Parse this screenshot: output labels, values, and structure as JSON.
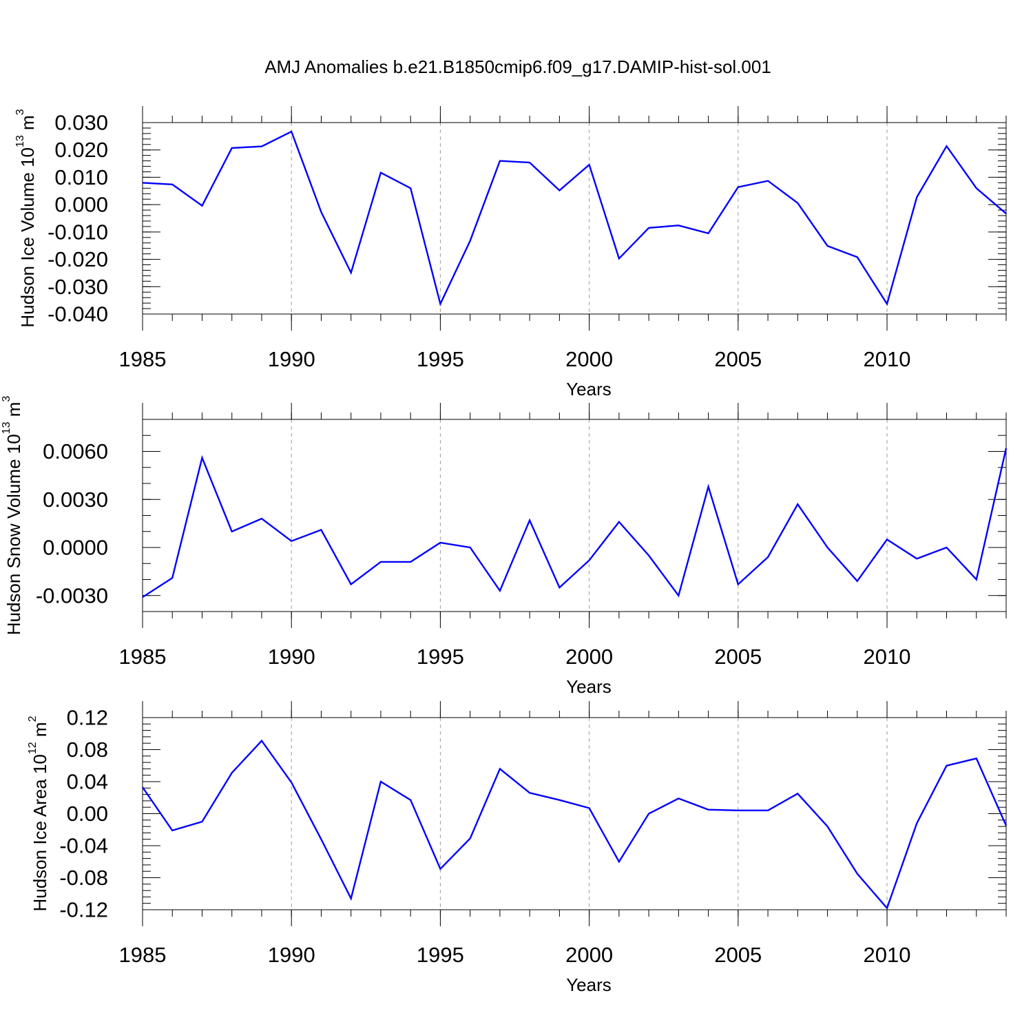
{
  "figure": {
    "title": "AMJ Anomalies b.e21.B1850cmip6.f09_g17.DAMIP-hist-sol.001",
    "series_color": "#0000ff"
  },
  "chart_data": [
    {
      "type": "line",
      "title": "AMJ Anomalies b.e21.B1850cmip6.f09_g17.DAMIP-hist-sol.001",
      "xlabel": "Years",
      "ylabel": "Hudson Ice Volume 10",
      "ylabel_exp": "13",
      "ylabel_unit": "m",
      "ylabel_unit_exp": "3",
      "xlim": [
        1985,
        2014
      ],
      "ylim": [
        -0.04,
        0.03
      ],
      "x_ticks": [
        1985,
        1990,
        1995,
        2000,
        2005,
        2010
      ],
      "x_tick_labels": [
        "1985",
        "1990",
        "1995",
        "2000",
        "2005",
        "2010"
      ],
      "y_ticks": [
        0.03,
        0.02,
        0.01,
        0.0,
        -0.01,
        -0.02,
        -0.03,
        -0.04
      ],
      "y_tick_labels": [
        "0.030",
        "0.020",
        "0.010",
        "0.000",
        "-0.010",
        "-0.020",
        "-0.030",
        "-0.040"
      ],
      "x_minor_step": 1,
      "y_minor_step": 0.002,
      "grid": "vertical-dashed",
      "x": [
        1985,
        1986,
        1987,
        1988,
        1989,
        1990,
        1991,
        1992,
        1993,
        1994,
        1995,
        1996,
        1997,
        1998,
        1999,
        2000,
        2001,
        2002,
        2003,
        2004,
        2005,
        2006,
        2007,
        2008,
        2009,
        2010,
        2011,
        2012,
        2013,
        2014
      ],
      "series": [
        {
          "name": "Hudson Ice Volume",
          "values": [
            0.008,
            0.0074,
            -0.0004,
            0.0207,
            0.0213,
            0.0267,
            -0.0027,
            -0.0249,
            0.0117,
            0.006,
            -0.0363,
            -0.0132,
            0.016,
            0.0154,
            0.0052,
            0.0146,
            -0.0197,
            -0.0085,
            -0.0076,
            -0.0105,
            0.0064,
            0.0087,
            0.0006,
            -0.0151,
            -0.0192,
            -0.0363,
            0.0027,
            0.0214,
            0.006,
            -0.0033
          ]
        }
      ]
    },
    {
      "type": "line",
      "xlabel": "Years",
      "ylabel": "Hudson Snow Volume 10",
      "ylabel_exp": "13",
      "ylabel_unit": "m",
      "ylabel_unit_exp": "3",
      "xlim": [
        1985,
        2014
      ],
      "ylim": [
        -0.004,
        0.008
      ],
      "x_ticks": [
        1985,
        1990,
        1995,
        2000,
        2005,
        2010
      ],
      "x_tick_labels": [
        "1985",
        "1990",
        "1995",
        "2000",
        "2005",
        "2010"
      ],
      "y_ticks": [
        0.006,
        0.003,
        0.0,
        -0.003
      ],
      "y_tick_labels": [
        "0.0060",
        "0.0030",
        "0.0000",
        "-0.0030"
      ],
      "x_minor_step": 1,
      "y_minor_step": 0.001,
      "grid": "vertical-dashed",
      "x": [
        1985,
        1986,
        1987,
        1988,
        1989,
        1990,
        1991,
        1992,
        1993,
        1994,
        1995,
        1996,
        1997,
        1998,
        1999,
        2000,
        2001,
        2002,
        2003,
        2004,
        2005,
        2006,
        2007,
        2008,
        2009,
        2010,
        2011,
        2012,
        2013,
        2014
      ],
      "series": [
        {
          "name": "Hudson Snow Volume",
          "values": [
            -0.0031,
            -0.0019,
            0.0056,
            0.001,
            0.0018,
            0.0004,
            0.0011,
            -0.0023,
            -0.0009,
            -0.0009,
            0.0003,
            0.0,
            -0.0027,
            0.0017,
            -0.0025,
            -0.0008,
            0.0016,
            -0.0005,
            -0.003,
            0.0038,
            -0.0023,
            -0.0006,
            0.0027,
            0.0,
            -0.0021,
            0.0005,
            -0.0007,
            0.0,
            -0.002,
            0.0062
          ]
        }
      ]
    },
    {
      "type": "line",
      "xlabel": "Years",
      "ylabel": "Hudson Ice Area 10",
      "ylabel_exp": "12",
      "ylabel_unit": "m",
      "ylabel_unit_exp": "2",
      "xlim": [
        1985,
        2014
      ],
      "ylim": [
        -0.12,
        0.12
      ],
      "x_ticks": [
        1985,
        1990,
        1995,
        2000,
        2005,
        2010
      ],
      "x_tick_labels": [
        "1985",
        "1990",
        "1995",
        "2000",
        "2005",
        "2010"
      ],
      "y_ticks": [
        0.12,
        0.08,
        0.04,
        0.0,
        -0.04,
        -0.08,
        -0.12
      ],
      "y_tick_labels": [
        "0.12",
        "0.08",
        "0.04",
        "0.00",
        "-0.04",
        "-0.08",
        "-0.12"
      ],
      "x_minor_step": 1,
      "y_minor_step": 0.008,
      "grid": "vertical-dashed",
      "x": [
        1985,
        1986,
        1987,
        1988,
        1989,
        1990,
        1991,
        1992,
        1993,
        1994,
        1995,
        1996,
        1997,
        1998,
        1999,
        2000,
        2001,
        2002,
        2003,
        2004,
        2005,
        2006,
        2007,
        2008,
        2009,
        2010,
        2011,
        2012,
        2013,
        2014
      ],
      "series": [
        {
          "name": "Hudson Ice Area",
          "values": [
            0.033,
            -0.021,
            -0.01,
            0.051,
            0.091,
            0.039,
            -0.032,
            -0.106,
            0.04,
            0.017,
            -0.069,
            -0.031,
            0.056,
            0.026,
            0.017,
            0.007,
            -0.06,
            0.0,
            0.019,
            0.005,
            0.004,
            0.004,
            0.025,
            -0.016,
            -0.075,
            -0.118,
            -0.012,
            0.06,
            0.069,
            -0.015
          ]
        }
      ]
    }
  ]
}
